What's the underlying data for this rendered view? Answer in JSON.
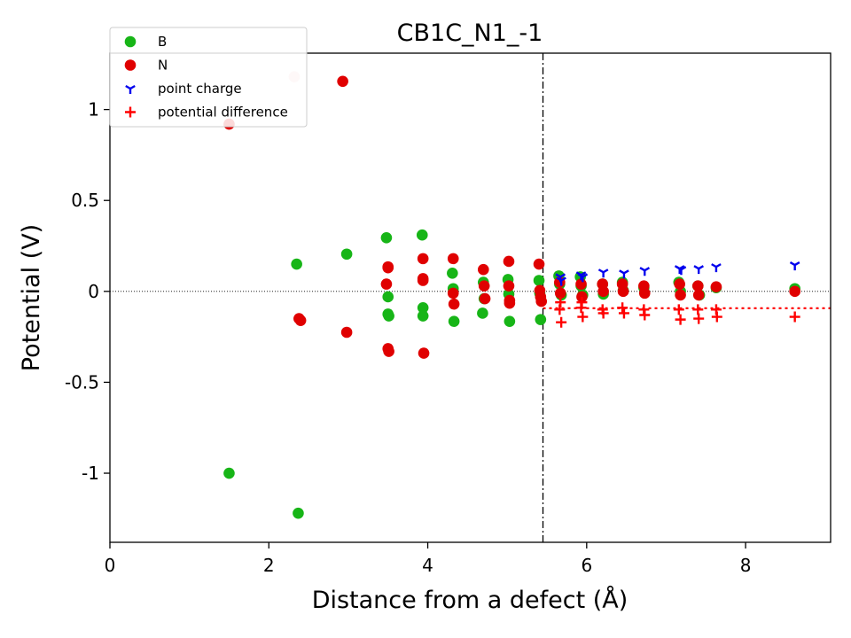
{
  "chart_data": {
    "type": "scatter",
    "title": "CB1C_N1_-1",
    "xlabel": "Distance from a defect (Å)",
    "ylabel": "Potential (V)",
    "xlim": [
      0,
      9.07
    ],
    "ylim": [
      -1.38,
      1.31
    ],
    "xticks": [
      0,
      2,
      4,
      6,
      8
    ],
    "xtick_labels": [
      "0",
      "2",
      "4",
      "6",
      "8"
    ],
    "yticks": [
      -1,
      -0.5,
      0,
      0.5,
      1
    ],
    "ytick_labels": [
      "-1",
      "-0.5",
      "0",
      "0.5",
      "1"
    ],
    "grid": false,
    "legend_position": "top-left",
    "defect_region_boundary_x": 5.45,
    "average_potential_difference": -0.093,
    "zero_line": 0,
    "series": [
      {
        "name": "B",
        "marker": "circle",
        "color": "#17b517",
        "x": [
          1.5,
          2.35,
          2.37,
          2.98,
          3.48,
          3.5,
          3.5,
          3.51,
          3.93,
          3.94,
          3.94,
          4.31,
          4.32,
          4.33,
          4.7,
          4.71,
          4.69,
          5.01,
          5.02,
          5.03,
          5.4,
          5.41,
          5.42,
          5.65,
          5.66,
          5.68,
          5.92,
          5.93,
          5.95,
          6.2,
          6.21,
          6.45,
          6.46,
          6.72,
          7.16,
          7.18,
          7.4,
          7.42,
          7.63,
          8.62
        ],
        "y": [
          -1.0,
          0.15,
          -1.22,
          0.205,
          0.295,
          -0.03,
          -0.125,
          -0.135,
          0.31,
          -0.09,
          -0.135,
          0.1,
          0.015,
          -0.165,
          0.05,
          -0.04,
          -0.12,
          0.065,
          -0.015,
          -0.165,
          0.06,
          -0.01,
          -0.155,
          0.085,
          0.04,
          -0.02,
          0.08,
          0.03,
          -0.02,
          0.04,
          -0.015,
          0.05,
          0.005,
          0.02,
          0.05,
          0.0,
          0.03,
          -0.02,
          0.02,
          0.015
        ]
      },
      {
        "name": "N",
        "marker": "circle",
        "color": "#e00000",
        "x": [
          1.5,
          2.38,
          2.4,
          2.93,
          2.98,
          3.5,
          3.5,
          3.48,
          3.5,
          3.51,
          3.94,
          3.94,
          3.94,
          3.95,
          4.32,
          4.32,
          4.33,
          4.7,
          4.71,
          4.72,
          5.02,
          5.02,
          5.03,
          5.03,
          5.4,
          5.41,
          5.42,
          5.43,
          5.66,
          5.67,
          5.93,
          5.94,
          6.2,
          6.21,
          6.45,
          6.46,
          6.72,
          6.73,
          7.17,
          7.18,
          7.4,
          7.41,
          7.63,
          8.62
        ],
        "y": [
          0.92,
          -0.15,
          -0.16,
          1.155,
          -0.225,
          0.13,
          0.135,
          0.04,
          -0.315,
          -0.33,
          0.18,
          0.07,
          0.06,
          -0.34,
          0.18,
          -0.01,
          -0.07,
          0.12,
          0.03,
          -0.04,
          0.165,
          0.03,
          -0.05,
          -0.065,
          0.15,
          0.005,
          -0.03,
          -0.055,
          0.05,
          -0.01,
          0.04,
          -0.03,
          0.04,
          0.0,
          0.04,
          0.0,
          0.03,
          -0.01,
          0.04,
          -0.02,
          0.03,
          -0.02,
          0.025,
          0.0
        ]
      },
      {
        "name": "",
        "marker": "circle",
        "color": "#f6cccc",
        "x": [
          2.32
        ],
        "y": [
          1.18
        ]
      },
      {
        "name": "point charge",
        "marker": "tri_down",
        "color": "#0000ee",
        "x": [
          5.67,
          5.68,
          5.93,
          5.95,
          6.21,
          6.47,
          6.73,
          7.17,
          7.19,
          7.41,
          7.63,
          8.62
        ],
        "y": [
          0.08,
          0.06,
          0.09,
          0.08,
          0.105,
          0.1,
          0.115,
          0.125,
          0.12,
          0.125,
          0.135,
          0.145
        ]
      },
      {
        "name": "potential difference",
        "marker": "plus",
        "color": "#ff0000",
        "x": [
          5.66,
          5.67,
          5.68,
          5.93,
          5.94,
          5.95,
          6.2,
          6.21,
          6.45,
          6.47,
          6.72,
          6.73,
          7.16,
          7.18,
          7.4,
          7.41,
          7.63,
          7.64,
          8.62
        ],
        "y": [
          -0.1,
          -0.06,
          -0.17,
          -0.09,
          -0.06,
          -0.14,
          -0.1,
          -0.12,
          -0.09,
          -0.12,
          -0.1,
          -0.13,
          -0.1,
          -0.155,
          -0.1,
          -0.15,
          -0.1,
          -0.14,
          -0.14
        ]
      }
    ]
  }
}
